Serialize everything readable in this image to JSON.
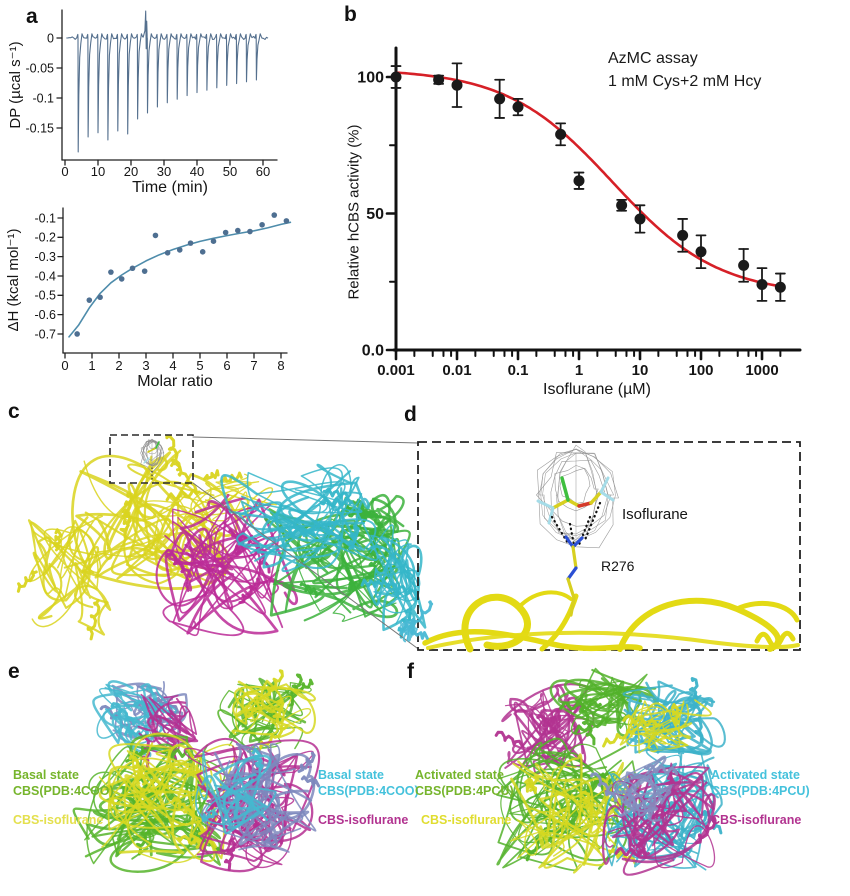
{
  "panels": {
    "a": {
      "label": "a"
    },
    "b": {
      "label": "b"
    },
    "c": {
      "label": "c"
    },
    "d": {
      "label": "d"
    },
    "e": {
      "label": "e"
    },
    "f": {
      "label": "f"
    }
  },
  "chart_data": [
    {
      "id": "itc_thermogram",
      "panel": "a",
      "type": "line",
      "xlabel": "Time (min)",
      "ylabel": "DP (µcal s⁻¹)",
      "xlim": [
        0,
        62
      ],
      "xticks": [
        0,
        10,
        20,
        30,
        40,
        50,
        60
      ],
      "ylim": [
        -0.205,
        0.045
      ],
      "yticks": [
        0,
        -0.05,
        -0.1,
        -0.15
      ],
      "ytick_labels": [
        "0",
        "-0.05",
        "-0.1",
        "-0.15"
      ],
      "line_color": "#55708e",
      "injections": {
        "start_min": 4,
        "interval_min": 3,
        "depths_ucal_per_s": [
          -0.19,
          -0.165,
          -0.158,
          -0.17,
          -0.155,
          -0.16,
          -0.135,
          -0.125,
          -0.115,
          -0.108,
          -0.102,
          -0.096,
          -0.091,
          -0.087,
          -0.083,
          -0.079,
          -0.076,
          -0.073,
          -0.07
        ]
      },
      "noise_burst": {
        "time_min": 24.5,
        "peak": 0.045
      }
    },
    {
      "id": "itc_isotherm",
      "panel": "a",
      "type": "scatter",
      "xlabel": "Molar ratio",
      "ylabel": "ΔH (kcal mol⁻¹)",
      "xlim": [
        0,
        8.6
      ],
      "xticks": [
        0,
        1,
        2,
        3,
        4,
        5,
        6,
        7,
        8
      ],
      "yticks": [
        -0.1,
        -0.2,
        -0.3,
        -0.4,
        -0.5,
        -0.6,
        -0.7
      ],
      "ytick_labels": [
        "-0.1",
        "-0.2",
        "-0.3",
        "-0.4",
        "-0.5",
        "-0.6",
        "-0.7"
      ],
      "point_color": "#4e6f91",
      "line_color": "#4e8cab",
      "points": [
        [
          0.45,
          -0.7
        ],
        [
          0.9,
          -0.525
        ],
        [
          1.3,
          -0.51
        ],
        [
          1.7,
          -0.38
        ],
        [
          2.1,
          -0.415
        ],
        [
          2.5,
          -0.36
        ],
        [
          2.95,
          -0.375
        ],
        [
          3.35,
          -0.19
        ],
        [
          3.8,
          -0.28
        ],
        [
          4.25,
          -0.265
        ],
        [
          4.65,
          -0.23
        ],
        [
          5.1,
          -0.275
        ],
        [
          5.5,
          -0.22
        ],
        [
          5.95,
          -0.175
        ],
        [
          6.4,
          -0.165
        ],
        [
          6.85,
          -0.17
        ],
        [
          7.3,
          -0.135
        ],
        [
          7.75,
          -0.085
        ],
        [
          8.2,
          -0.115
        ]
      ],
      "fit": [
        [
          0.15,
          -0.715
        ],
        [
          0.5,
          -0.655
        ],
        [
          0.9,
          -0.565
        ],
        [
          1.3,
          -0.49
        ],
        [
          1.7,
          -0.435
        ],
        [
          2.1,
          -0.395
        ],
        [
          2.5,
          -0.36
        ],
        [
          3,
          -0.322
        ],
        [
          3.5,
          -0.29
        ],
        [
          4,
          -0.263
        ],
        [
          4.5,
          -0.24
        ],
        [
          5,
          -0.221
        ],
        [
          5.5,
          -0.205
        ],
        [
          6,
          -0.191
        ],
        [
          6.5,
          -0.178
        ],
        [
          7,
          -0.166
        ],
        [
          7.5,
          -0.151
        ],
        [
          8,
          -0.133
        ],
        [
          8.35,
          -0.122
        ]
      ]
    },
    {
      "id": "dose_response",
      "panel": "b",
      "type": "scatter",
      "xscale": "log",
      "xlabel": "Isoflurane (µM)",
      "ylabel": "Relative hCBS activity (%)",
      "xticks": [
        0.001,
        0.01,
        0.1,
        1,
        10,
        100,
        1000
      ],
      "xtick_labels": [
        "0.001",
        "0.01",
        "0.1",
        "1",
        "10",
        "100",
        "1000"
      ],
      "yticks": [
        0,
        50,
        100
      ],
      "ytick_labels": [
        "0.0",
        "50",
        "100"
      ],
      "minor_yticks": [
        25,
        75
      ],
      "point_color": "#1a1a1a",
      "fit_color": "#d62027",
      "annotation": [
        "AzMC assay",
        "1 mM Cys+2 mM Hcy"
      ],
      "points_uM_pct_err": [
        [
          0.001,
          100,
          4
        ],
        [
          0.005,
          99,
          1.5
        ],
        [
          0.01,
          97,
          8
        ],
        [
          0.05,
          92,
          7
        ],
        [
          0.1,
          89,
          3
        ],
        [
          0.5,
          79,
          4
        ],
        [
          1,
          62,
          3
        ],
        [
          5,
          53,
          2
        ],
        [
          10,
          48,
          5
        ],
        [
          50,
          42,
          6
        ],
        [
          100,
          36,
          6
        ],
        [
          500,
          31,
          6
        ],
        [
          1000,
          24,
          6
        ],
        [
          2000,
          23,
          5
        ]
      ],
      "fit_4pl": {
        "top": 103,
        "bottom": 20,
        "logIC50": 0.55,
        "hill": 0.5,
        "logx_range": [
          -3,
          3.35
        ]
      }
    }
  ],
  "structures": {
    "c": {
      "description": "hCBS tetramer cartoon, isoflurane site boxed",
      "chain_colors": [
        "#d9d41f",
        "#bb2a96",
        "#35b6c9",
        "#3cb23c"
      ],
      "mesh_color": "#909090"
    },
    "d": {
      "description": "Close-up of isoflurane binding site",
      "ligand_label": "Isoflurane",
      "residue_label": "R276",
      "ribbon_color": "#e3da14",
      "mesh_color": "#8f8f8f",
      "atom_colors": {
        "carbon": "#d8d020",
        "chlorine": "#3fbf3f",
        "fluorine": "#a5dce8",
        "oxygen": "#d43a2a",
        "nitrogen": "#2b4fd4"
      }
    },
    "e": {
      "left": {
        "line1": "Basal state",
        "line2": "CBS(PDB:4COO)",
        "color": "#76b52c",
        "iso_label": "CBS-isoflurane",
        "iso_color": "#e4e04e"
      },
      "right": {
        "line1": "Basal state",
        "line2": "CBS(PDB:4COO)",
        "color": "#45c2dc",
        "iso_label": "CBS-isoflurane",
        "iso_color": "#b23390"
      },
      "overlay_colors": {
        "green": "#56b42a",
        "yellow": "#d6d821",
        "magenta": "#b52f92",
        "slate": "#7d88bd",
        "cyan": "#45b8cf"
      }
    },
    "f": {
      "left": {
        "line1": "Activated state",
        "line2": "CBS(PDB:4PCU)",
        "color": "#76b52c",
        "iso_label": "CBS-isoflurane",
        "iso_color": "#e0dd30"
      },
      "right": {
        "line1": "Activated state",
        "line2": "CBS(PDB:4PCU)",
        "color": "#45c2dc",
        "iso_label": "CBS-isoflurane",
        "iso_color": "#b23390"
      },
      "overlay_colors": {
        "green": "#52b22a",
        "yellow": "#d6d821",
        "magenta": "#b23390",
        "slate": "#8390c0",
        "cyan": "#3cb2c9"
      }
    }
  }
}
